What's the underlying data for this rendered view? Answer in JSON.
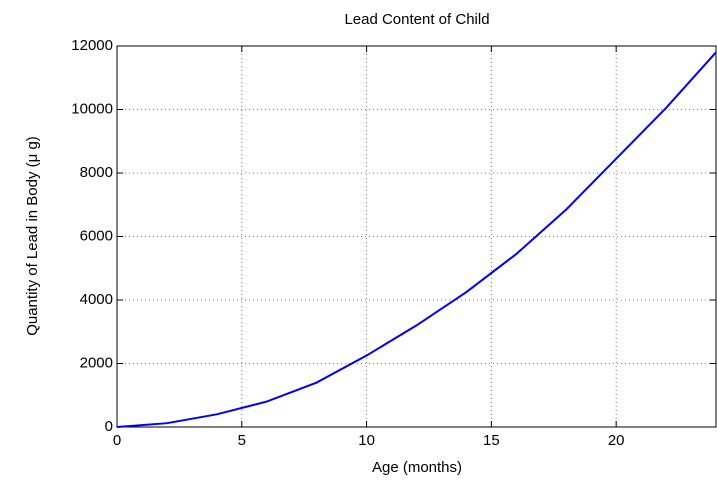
{
  "chart_data": {
    "type": "line",
    "title": "Lead Content of Child",
    "xlabel": "Age (months)",
    "ylabel": "Quantity of Lead in Body (μ g)",
    "x": [
      0,
      2,
      4,
      6,
      8,
      10,
      12,
      14,
      16,
      18,
      20,
      22,
      24
    ],
    "series": [
      {
        "name": "Lead",
        "color": "#0000ff",
        "values": [
          0,
          120,
          400,
          800,
          1400,
          2250,
          3200,
          4250,
          5450,
          6850,
          8450,
          10050,
          11800
        ]
      }
    ],
    "xlim": [
      0,
      24
    ],
    "ylim": [
      0,
      12000
    ],
    "xticks": [
      0,
      5,
      10,
      15,
      20
    ],
    "yticks": [
      0,
      2000,
      4000,
      6000,
      8000,
      10000,
      12000
    ],
    "grid": true
  }
}
